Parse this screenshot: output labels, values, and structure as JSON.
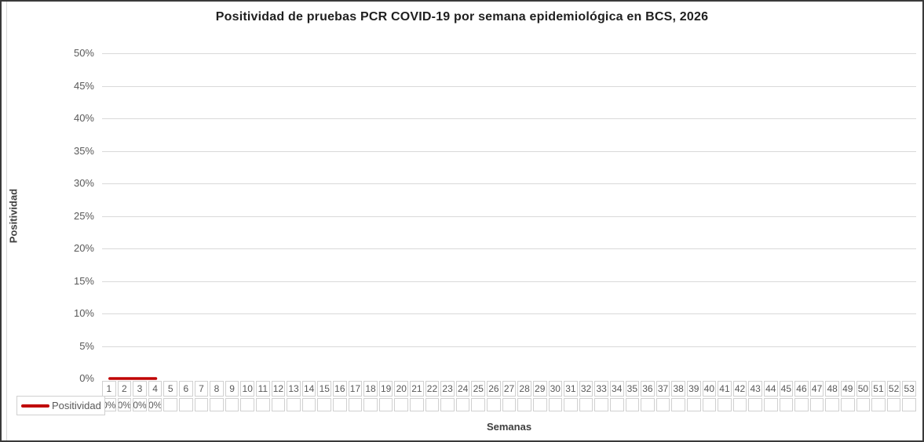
{
  "chart_data": {
    "type": "line",
    "title": "Positividad de pruebas PCR COVID-19 por semana epidemiológica en BCS, 2026",
    "xlabel": "Semanas",
    "ylabel": "Positividad",
    "categories": [
      1,
      2,
      3,
      4,
      5,
      6,
      7,
      8,
      9,
      10,
      11,
      12,
      13,
      14,
      15,
      16,
      17,
      18,
      19,
      20,
      21,
      22,
      23,
      24,
      25,
      26,
      27,
      28,
      29,
      30,
      31,
      32,
      33,
      34,
      35,
      36,
      37,
      38,
      39,
      40,
      41,
      42,
      43,
      44,
      45,
      46,
      47,
      48,
      49,
      50,
      51,
      52,
      53
    ],
    "series": [
      {
        "name": "Positividad",
        "color": "#c00000",
        "values": [
          0,
          0,
          0,
          0,
          null,
          null,
          null,
          null,
          null,
          null,
          null,
          null,
          null,
          null,
          null,
          null,
          null,
          null,
          null,
          null,
          null,
          null,
          null,
          null,
          null,
          null,
          null,
          null,
          null,
          null,
          null,
          null,
          null,
          null,
          null,
          null,
          null,
          null,
          null,
          null,
          null,
          null,
          null,
          null,
          null,
          null,
          null,
          null,
          null,
          null,
          null,
          null,
          null
        ]
      }
    ],
    "value_suffix": "%",
    "y_ticks": [
      {
        "value": 0,
        "label": "0%"
      },
      {
        "value": 5,
        "label": "5%"
      },
      {
        "value": 10,
        "label": "10%"
      },
      {
        "value": 15,
        "label": "15%"
      },
      {
        "value": 20,
        "label": "20%"
      },
      {
        "value": 25,
        "label": "25%"
      },
      {
        "value": 30,
        "label": "30%"
      },
      {
        "value": 35,
        "label": "35%"
      },
      {
        "value": 40,
        "label": "40%"
      },
      {
        "value": 45,
        "label": "45%"
      },
      {
        "value": 50,
        "label": "50%"
      }
    ],
    "ylim": [
      0,
      50
    ],
    "grid": true,
    "legend_position": "data-table-left",
    "data_table_shown": true,
    "grid_color": "#d9d9d9",
    "table_border_color": "#d0d0d0",
    "text_color": "#595959"
  }
}
